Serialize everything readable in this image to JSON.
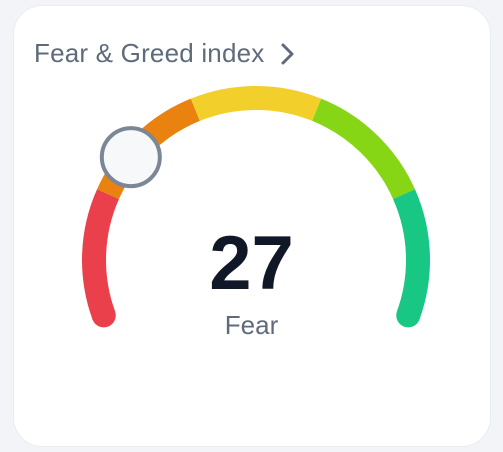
{
  "widget": {
    "title": "Fear & Greed index",
    "value": "27",
    "sentiment": "Fear",
    "level": 27,
    "range": [
      0,
      100
    ],
    "icons": {
      "open": "chevron-right-icon",
      "indicator": "gauge-knob-icon"
    },
    "colors": {
      "extreme_fear": "#e9404b",
      "fear": "#e9820f",
      "neutral": "#f2cf2a",
      "greed": "#86d616",
      "extreme_greed": "#19c785",
      "knob_fill": "#f7f8fa",
      "knob_border": "#7c8796"
    }
  }
}
